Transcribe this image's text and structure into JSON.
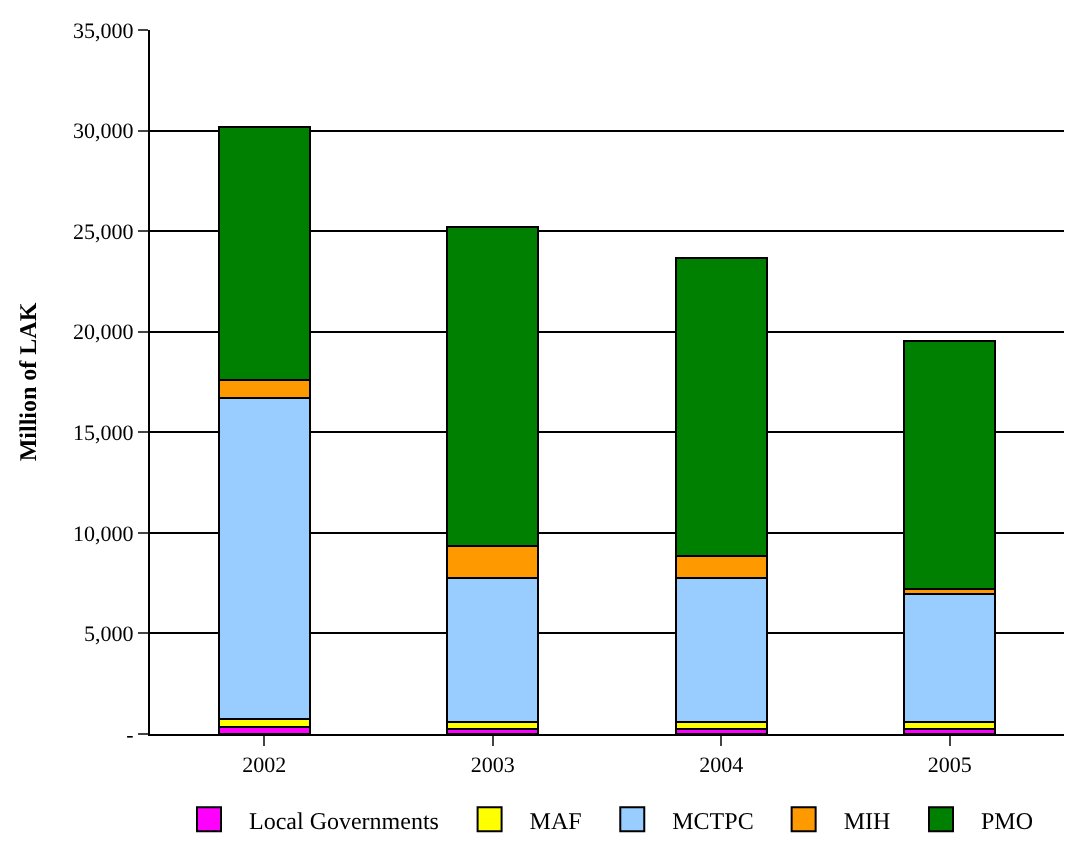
{
  "chart_data": {
    "type": "bar",
    "stacked": true,
    "ylabel": "Million of LAK",
    "categories": [
      "2002",
      "2003",
      "2004",
      "2005"
    ],
    "series": [
      {
        "name": "Local Governments",
        "color": "#ff00ff",
        "values": [
          350,
          250,
          250,
          250
        ]
      },
      {
        "name": "MAF",
        "color": "#ffff00",
        "values": [
          400,
          350,
          350,
          350
        ]
      },
      {
        "name": "MCTPC",
        "color": "#99ccff",
        "values": [
          15940,
          7180,
          7180,
          6340
        ]
      },
      {
        "name": "MIH",
        "color": "#ff9900",
        "values": [
          930,
          1580,
          1090,
          270
        ]
      },
      {
        "name": "PMO",
        "color": "#008000",
        "values": [
          12570,
          15840,
          14780,
          12330
        ]
      }
    ],
    "ylim": [
      0,
      35000
    ],
    "yticks": [
      {
        "value": 0,
        "label": "-"
      },
      {
        "value": 5000,
        "label": "5,000"
      },
      {
        "value": 10000,
        "label": "10,000"
      },
      {
        "value": 15000,
        "label": "15,000"
      },
      {
        "value": 20000,
        "label": "20,000"
      },
      {
        "value": 25000,
        "label": "25,000"
      },
      {
        "value": 30000,
        "label": "30,000"
      },
      {
        "value": 35000,
        "label": "35,000"
      }
    ],
    "grid": "y",
    "legend": "bottom"
  }
}
